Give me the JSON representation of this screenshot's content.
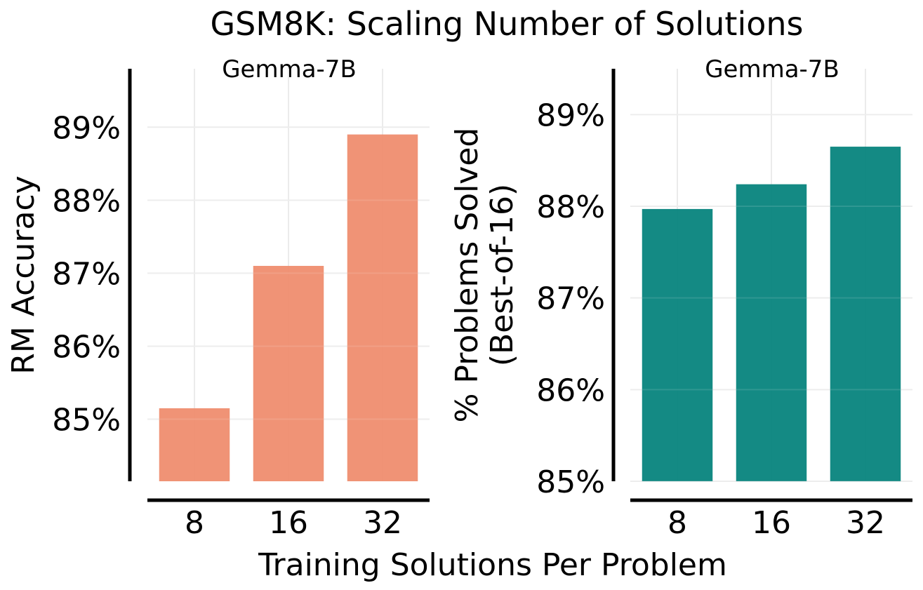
{
  "figure_title": "GSM8K: Scaling Number of Solutions",
  "shared_xlabel": "Training Solutions Per Problem",
  "chart_data": [
    {
      "type": "bar",
      "subtitle": "Gemma-7B",
      "ylabel": "RM Accuracy",
      "categories": [
        "8",
        "16",
        "32"
      ],
      "values": [
        85.15,
        87.1,
        88.9
      ],
      "ylim": [
        84.15,
        89.8
      ],
      "yticks": [
        85,
        86,
        87,
        88,
        89
      ],
      "ytick_labels": [
        "85%",
        "86%",
        "87%",
        "88%",
        "89%"
      ],
      "grid": true,
      "color": "#ef8a6a"
    },
    {
      "type": "bar",
      "subtitle": "Gemma-7B",
      "ylabel": "% Problems Solved (Best-of-16)",
      "ylabel_lines": [
        "% Problems Solved",
        "(Best-of-16)"
      ],
      "categories": [
        "8",
        "16",
        "32"
      ],
      "values": [
        87.97,
        88.24,
        88.65
      ],
      "ylim": [
        85.0,
        89.5
      ],
      "yticks": [
        85,
        86,
        87,
        88,
        89
      ],
      "ytick_labels": [
        "85%",
        "86%",
        "87%",
        "88%",
        "89%"
      ],
      "grid": true,
      "color": "#00807a"
    }
  ]
}
